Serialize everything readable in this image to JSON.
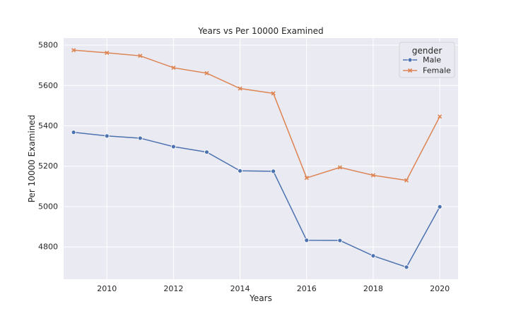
{
  "chart_data": {
    "type": "line",
    "title": "Years vs Per 10000 Examined",
    "xlabel": "Years",
    "ylabel": "Per 10000 Examined",
    "x": [
      2009,
      2010,
      2011,
      2012,
      2013,
      2014,
      2015,
      2016,
      2017,
      2018,
      2019,
      2020
    ],
    "xlim": [
      2008.7,
      2020.55
    ],
    "ylim": [
      4640,
      5835
    ],
    "xticks": [
      2010,
      2012,
      2014,
      2016,
      2018,
      2020
    ],
    "yticks": [
      4800,
      5000,
      5200,
      5400,
      5600,
      5800
    ],
    "grid": true,
    "legend": {
      "title": "gender",
      "placement": "top-right"
    },
    "series": [
      {
        "name": "Male",
        "color": "#4c72b0",
        "marker": "circle",
        "values": [
          5368,
          5350,
          5339,
          5297,
          5270,
          5177,
          5175,
          4833,
          4832,
          4756,
          4700,
          4999
        ]
      },
      {
        "name": "Female",
        "color": "#dd8452",
        "marker": "x",
        "values": [
          5775,
          5762,
          5747,
          5688,
          5661,
          5585,
          5561,
          5142,
          5194,
          5155,
          5130,
          5446
        ]
      }
    ],
    "background_color": "#eaeaf2",
    "grid_color": "#ffffff"
  }
}
